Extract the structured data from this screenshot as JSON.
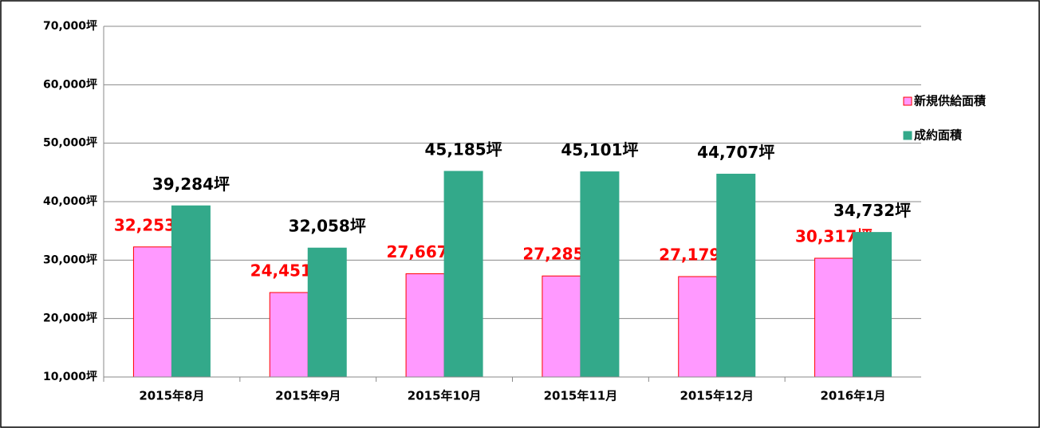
{
  "chart_data": {
    "type": "bar",
    "categories": [
      "2015年8月",
      "2015年9月",
      "2015年10月",
      "2015年11月",
      "2015年12月",
      "2016年1月"
    ],
    "series": [
      {
        "name": "新規供給面積",
        "color": "#ff99ff",
        "edge": "#ff0000",
        "label_color": "#ff0000",
        "values": [
          32253,
          24451,
          27667,
          27285,
          27179,
          30317
        ],
        "value_labels": [
          "32,253坪",
          "24,451坪",
          "27,667坪",
          "27,285坪",
          "27,179坪",
          "30,317坪"
        ]
      },
      {
        "name": "成約面積",
        "color": "#33a98a",
        "edge": "#33a98a",
        "label_color": "#000000",
        "values": [
          39284,
          32058,
          45185,
          45101,
          44707,
          34732
        ],
        "value_labels": [
          "39,284坪",
          "32,058坪",
          "45,185坪",
          "45,101坪",
          "44,707坪",
          "34,732坪"
        ]
      }
    ],
    "ylim": [
      10000,
      70000
    ],
    "yticks": [
      {
        "value": 10000,
        "label": "10,000坪"
      },
      {
        "value": 20000,
        "label": "20,000坪"
      },
      {
        "value": 30000,
        "label": "30,000坪"
      },
      {
        "value": 40000,
        "label": "40,000坪"
      },
      {
        "value": 50000,
        "label": "50,000坪"
      },
      {
        "value": 60000,
        "label": "60,000坪"
      },
      {
        "value": 70000,
        "label": "70,000坪"
      }
    ],
    "grid": true,
    "legend": "right"
  }
}
